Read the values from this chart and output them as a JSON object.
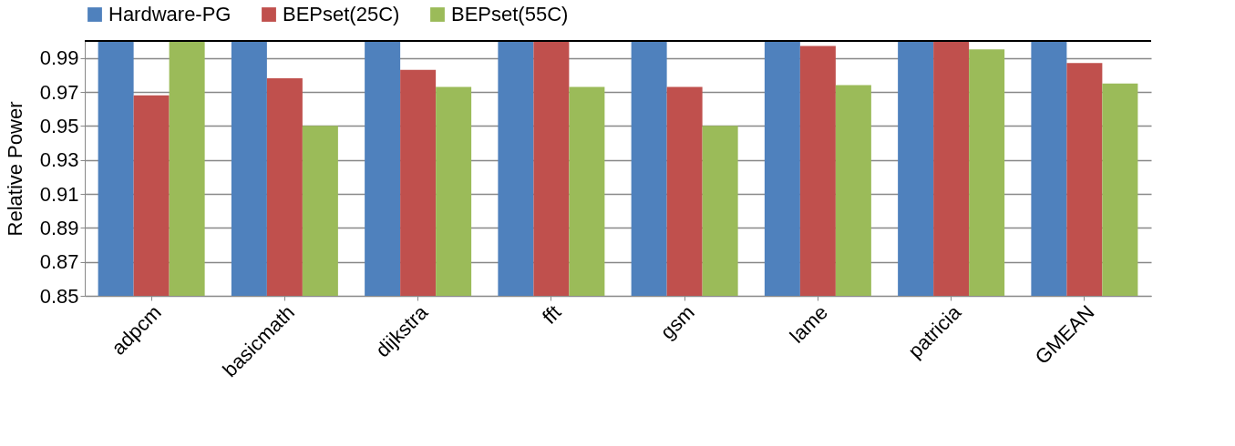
{
  "chart_data": {
    "type": "bar",
    "ylabel": "Relative Power",
    "categories": [
      "adpcm",
      "basicmath",
      "dijkstra",
      "fft",
      "gsm",
      "lame",
      "patricia",
      "GMEAN"
    ],
    "series": [
      {
        "name": "Hardware-PG",
        "color": "#4f81bd",
        "values": [
          1.0,
          1.0,
          1.0,
          1.0,
          1.0,
          1.0,
          1.0,
          1.0
        ]
      },
      {
        "name": "BEPset(25C)",
        "color": "#c0504d",
        "values": [
          0.968,
          0.978,
          0.983,
          1.0,
          0.973,
          0.997,
          1.0,
          0.987
        ]
      },
      {
        "name": "BEPset(55C)",
        "color": "#9bbb59",
        "values": [
          1.0,
          0.95,
          0.973,
          0.973,
          0.95,
          0.974,
          0.995,
          0.975
        ]
      }
    ],
    "ylim": [
      0.85,
      1.0
    ],
    "yticks": [
      0.85,
      0.87,
      0.89,
      0.91,
      0.93,
      0.95,
      0.97,
      0.99
    ],
    "grid": "y",
    "legend": "top"
  }
}
